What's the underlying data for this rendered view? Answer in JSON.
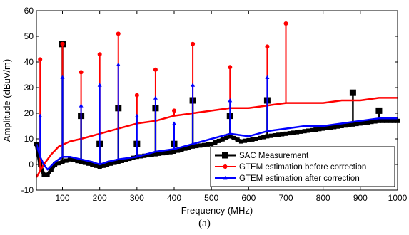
{
  "caption": "(a)",
  "chart_data": {
    "type": "line",
    "xlabel": "Frequency (MHz)",
    "ylabel": "Amplitude (dBuV/m)",
    "xlim": [
      30,
      1000
    ],
    "ylim": [
      -10,
      60
    ],
    "xticks": [
      100,
      200,
      300,
      400,
      500,
      600,
      700,
      800,
      900,
      1000
    ],
    "yticks": [
      -10,
      0,
      10,
      20,
      30,
      40,
      50,
      60
    ],
    "grid": false,
    "legend_position": "bottom-right",
    "series": [
      {
        "name": "SAC Measurement",
        "color": "#000000",
        "marker": "square",
        "baseline": [
          [
            30,
            8
          ],
          [
            40,
            0
          ],
          [
            50,
            -4
          ],
          [
            60,
            -4
          ],
          [
            70,
            -2
          ],
          [
            80,
            0
          ],
          [
            100,
            1
          ],
          [
            120,
            2
          ],
          [
            150,
            1
          ],
          [
            180,
            0
          ],
          [
            200,
            -1
          ],
          [
            220,
            0
          ],
          [
            250,
            1
          ],
          [
            300,
            3
          ],
          [
            350,
            4
          ],
          [
            400,
            5
          ],
          [
            450,
            7
          ],
          [
            500,
            8
          ],
          [
            550,
            11
          ],
          [
            580,
            9
          ],
          [
            620,
            10
          ],
          [
            650,
            11
          ],
          [
            700,
            12
          ],
          [
            750,
            13
          ],
          [
            800,
            14
          ],
          [
            850,
            15
          ],
          [
            900,
            16
          ],
          [
            950,
            17
          ],
          [
            1000,
            17
          ]
        ],
        "peaks": [
          [
            100,
            47
          ],
          [
            150,
            19
          ],
          [
            200,
            8
          ],
          [
            250,
            22
          ],
          [
            300,
            8
          ],
          [
            350,
            22
          ],
          [
            400,
            8
          ],
          [
            450,
            25
          ],
          [
            550,
            19
          ],
          [
            650,
            25
          ],
          [
            880,
            28
          ],
          [
            950,
            21
          ]
        ]
      },
      {
        "name": "GTEM estimation before correction",
        "color": "#ff0000",
        "marker": "circle",
        "baseline": [
          [
            30,
            -5
          ],
          [
            50,
            0
          ],
          [
            70,
            4
          ],
          [
            90,
            7
          ],
          [
            120,
            9
          ],
          [
            150,
            10
          ],
          [
            200,
            12
          ],
          [
            250,
            14
          ],
          [
            300,
            16
          ],
          [
            350,
            17
          ],
          [
            400,
            19
          ],
          [
            450,
            20
          ],
          [
            500,
            21
          ],
          [
            550,
            22
          ],
          [
            600,
            22
          ],
          [
            650,
            23
          ],
          [
            700,
            24
          ],
          [
            750,
            24
          ],
          [
            800,
            24
          ],
          [
            850,
            25
          ],
          [
            900,
            25
          ],
          [
            950,
            26
          ],
          [
            1000,
            26
          ]
        ],
        "peaks": [
          [
            40,
            41
          ],
          [
            100,
            47
          ],
          [
            150,
            36
          ],
          [
            200,
            43
          ],
          [
            250,
            51
          ],
          [
            300,
            27
          ],
          [
            350,
            37
          ],
          [
            400,
            21
          ],
          [
            450,
            47
          ],
          [
            550,
            38
          ],
          [
            650,
            46
          ],
          [
            700,
            55
          ]
        ]
      },
      {
        "name": "GTEM estimation after correction",
        "color": "#0000ff",
        "marker": "triangle",
        "baseline": [
          [
            30,
            8
          ],
          [
            40,
            3
          ],
          [
            50,
            0
          ],
          [
            60,
            -2
          ],
          [
            80,
            1
          ],
          [
            100,
            3
          ],
          [
            120,
            3
          ],
          [
            150,
            2
          ],
          [
            180,
            1
          ],
          [
            200,
            0
          ],
          [
            220,
            1
          ],
          [
            250,
            2
          ],
          [
            300,
            3
          ],
          [
            350,
            5
          ],
          [
            400,
            6
          ],
          [
            450,
            8
          ],
          [
            500,
            10
          ],
          [
            550,
            12
          ],
          [
            600,
            11
          ],
          [
            650,
            13
          ],
          [
            700,
            14
          ],
          [
            750,
            15
          ],
          [
            800,
            15
          ],
          [
            850,
            16
          ],
          [
            900,
            17
          ],
          [
            950,
            18
          ],
          [
            1000,
            18
          ]
        ],
        "peaks": [
          [
            40,
            19
          ],
          [
            100,
            34
          ],
          [
            150,
            23
          ],
          [
            200,
            31
          ],
          [
            250,
            39
          ],
          [
            300,
            19
          ],
          [
            350,
            26
          ],
          [
            400,
            16
          ],
          [
            450,
            31
          ],
          [
            550,
            25
          ],
          [
            650,
            34
          ]
        ]
      }
    ]
  }
}
